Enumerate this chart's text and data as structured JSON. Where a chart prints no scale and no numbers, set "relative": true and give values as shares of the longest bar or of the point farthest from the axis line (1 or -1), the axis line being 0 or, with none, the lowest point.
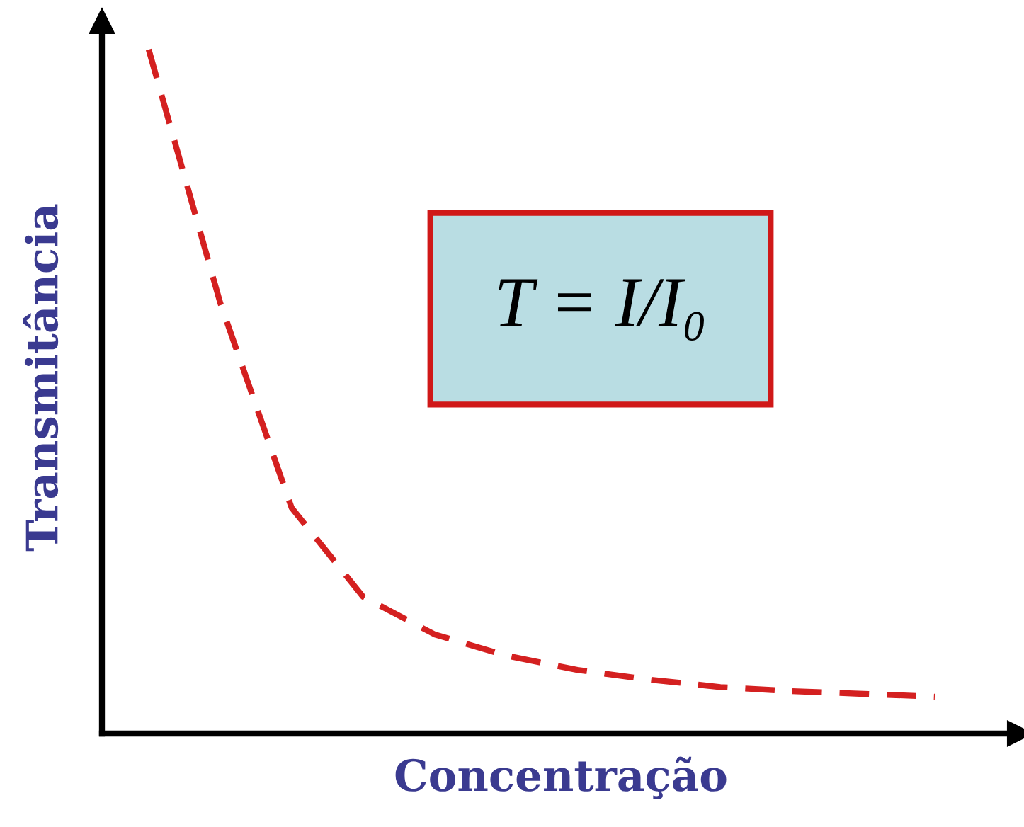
{
  "chart_data": {
    "type": "line",
    "xlabel": "Concentração",
    "ylabel": "Transmitância",
    "relative": true,
    "categories": [
      null,
      null,
      null,
      null,
      null,
      null,
      null,
      null,
      null,
      null,
      null,
      null
    ],
    "series": [
      {
        "color": "#d42020",
        "values": [
          1.0,
          0.63,
          0.33,
          0.2,
          0.145,
          0.114,
          0.093,
          0.079,
          0.068,
          0.062,
          0.058,
          0.054
        ]
      }
    ],
    "line_style": "dashed",
    "marker": "none",
    "legend": false,
    "tick_labels": false,
    "annotations": [
      "T = I/I₀"
    ]
  }
}
